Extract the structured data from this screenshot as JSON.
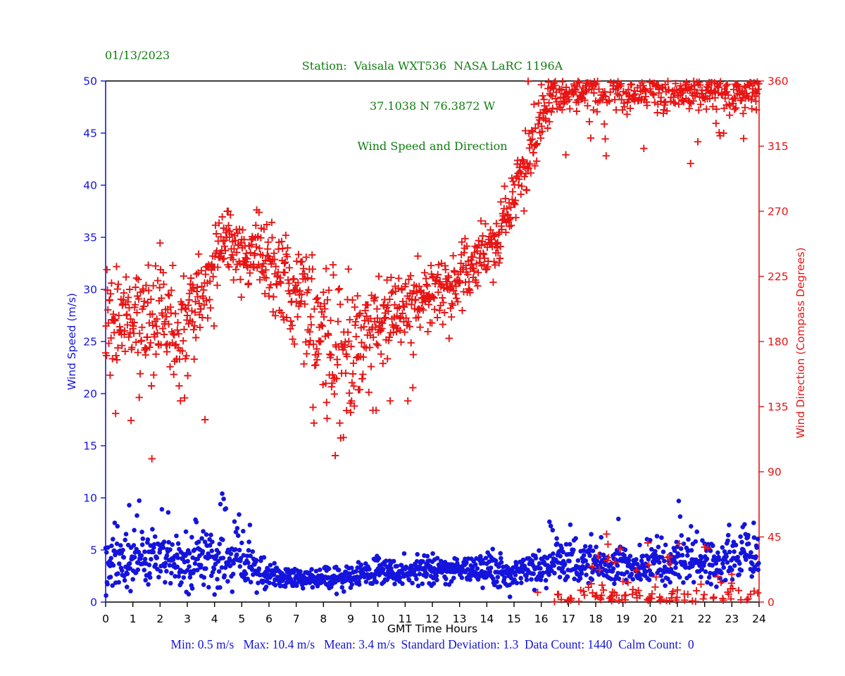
{
  "chart_data": {
    "type": "scatter",
    "date_label": "01/13/2023",
    "title_lines": [
      "Station:  Vaisala WXT536  NASA LaRC 1196A",
      "37.1038 N 76.3872 W",
      "Wind Speed and Direction"
    ],
    "title_color": "#0f7e0f",
    "xlabel": "GMT Time Hours",
    "xlabel_color": "#000000",
    "xlim": [
      0,
      24
    ],
    "x_ticks": [
      0,
      1,
      2,
      3,
      4,
      5,
      6,
      7,
      8,
      9,
      10,
      11,
      12,
      13,
      14,
      15,
      16,
      17,
      18,
      19,
      20,
      21,
      22,
      23,
      24
    ],
    "grid": false,
    "legend": "none",
    "left_axis": {
      "label": "Wind Speed (m/s)",
      "color": "#1515dd",
      "lim": [
        0,
        50
      ],
      "ticks": [
        0,
        5,
        10,
        15,
        20,
        25,
        30,
        35,
        40,
        45,
        50
      ]
    },
    "right_axis": {
      "label": "Wind Direction (Compass Degrees)",
      "color": "#e81414",
      "lim": [
        0,
        360
      ],
      "ticks": [
        0,
        45,
        90,
        135,
        180,
        225,
        270,
        315,
        360
      ]
    },
    "seed": 1196,
    "series": [
      {
        "name": "Wind Speed",
        "marker": "dot",
        "color": "#1414dd",
        "axis": "left",
        "n": 1440,
        "units": "m/s",
        "profile": {
          "hours": [
            0,
            0.5,
            1,
            1.5,
            2,
            2.5,
            3,
            3.5,
            4,
            4.5,
            5,
            5.5,
            6,
            6.5,
            7,
            7.5,
            8,
            8.5,
            9,
            9.5,
            10,
            11,
            12,
            13,
            14,
            15,
            16,
            16.5,
            17,
            18,
            19,
            20,
            21,
            22,
            23,
            24
          ],
          "mean": [
            3.6,
            3.8,
            4.0,
            4.1,
            4.2,
            3.9,
            3.7,
            3.9,
            4.3,
            4.2,
            3.8,
            3.3,
            2.6,
            2.3,
            2.2,
            2.2,
            2.3,
            2.4,
            2.5,
            2.7,
            2.8,
            2.9,
            3.0,
            2.9,
            3.1,
            2.9,
            3.4,
            3.9,
            3.7,
            3.6,
            3.4,
            3.6,
            3.9,
            3.8,
            4.0,
            4.3
          ],
          "spread": [
            1.3,
            1.3,
            1.3,
            1.3,
            1.3,
            1.25,
            1.2,
            1.25,
            1.3,
            1.3,
            1.2,
            1.0,
            0.6,
            0.55,
            0.5,
            0.5,
            0.55,
            0.55,
            0.6,
            0.6,
            0.65,
            0.65,
            0.7,
            0.65,
            0.7,
            0.7,
            0.85,
            0.95,
            0.95,
            0.9,
            0.85,
            0.9,
            0.95,
            0.9,
            0.95,
            1.0
          ]
        },
        "tails": [
          [
            0,
            5.5,
            0.05,
            "up"
          ],
          [
            5.5,
            16,
            0.02,
            "down"
          ],
          [
            16,
            24,
            0.035,
            "up"
          ]
        ],
        "tail_mag": [
          1.0,
          3.4
        ],
        "down_scale": 0.45,
        "spikes": [
          [
            0.33,
            7.6
          ],
          [
            0.87,
            9.3
          ],
          [
            1.15,
            8.3
          ],
          [
            2.07,
            8.9
          ],
          [
            2.3,
            8.6
          ],
          [
            3.3,
            7.9
          ],
          [
            4.22,
            9.4
          ],
          [
            4.28,
            10.4
          ],
          [
            4.33,
            9.9
          ],
          [
            4.38,
            8.9
          ],
          [
            4.9,
            8.4
          ],
          [
            5.3,
            7.4
          ],
          [
            16.3,
            7.7
          ],
          [
            16.35,
            7.3
          ],
          [
            16.42,
            6.9
          ],
          [
            21.05,
            9.7
          ],
          [
            21.1,
            8.2
          ],
          [
            22.9,
            7.4
          ],
          [
            23.4,
            7.2
          ],
          [
            23.8,
            7.6
          ]
        ],
        "clamp": [
          0.5,
          10.4
        ]
      },
      {
        "name": "Wind Direction",
        "marker": "plus",
        "color": "#e81414",
        "axis": "right",
        "n": 1440,
        "units": "degrees",
        "profile": {
          "hours": [
            0,
            1,
            2,
            2.5,
            3,
            3.5,
            4,
            4.4,
            4.8,
            5.2,
            5.6,
            6,
            6.5,
            7,
            7.5,
            8,
            8.5,
            9,
            9.5,
            10,
            10.5,
            11,
            11.5,
            12,
            12.5,
            13,
            13.5,
            14,
            14.5,
            15,
            15.5,
            16,
            16.5,
            17,
            18,
            19,
            20,
            21,
            22,
            23,
            24
          ],
          "mean": [
            195,
            198,
            196,
            190,
            196,
            205,
            240,
            252,
            247,
            240,
            240,
            235,
            225,
            214,
            200,
            183,
            176,
            172,
            182,
            192,
            198,
            203,
            208,
            214,
            216,
            222,
            232,
            244,
            258,
            280,
            305,
            335,
            350,
            354,
            356,
            354,
            356,
            352,
            355,
            352,
            354
          ],
          "spread": [
            18,
            18,
            17,
            17,
            16,
            15,
            11,
            10,
            10,
            11,
            13,
            15,
            15,
            15,
            18,
            22,
            22,
            22,
            20,
            16,
            13,
            12,
            11,
            10,
            10,
            10,
            10,
            10,
            11,
            12,
            11,
            9,
            8,
            7,
            7,
            7,
            7,
            8,
            7,
            8,
            7
          ]
        },
        "tails": [
          [
            0,
            3.5,
            0.05,
            "down"
          ],
          [
            3.5,
            7,
            0.03,
            "down"
          ],
          [
            7,
            10,
            0.07,
            "down"
          ],
          [
            10,
            15.5,
            0.02,
            "down"
          ],
          [
            15.5,
            16.5,
            0.06,
            "both"
          ],
          [
            16.5,
            19,
            0.12,
            "both"
          ],
          [
            19,
            21,
            0.09,
            "both"
          ],
          [
            21,
            22.5,
            0.11,
            "both"
          ],
          [
            22.5,
            24,
            0.08,
            "both"
          ]
        ],
        "tail_mag": [
          15,
          48
        ],
        "down_scale": 1.0,
        "outliers": [
          [
            1.7,
            99
          ],
          [
            2.0,
            248
          ],
          [
            2.75,
            139
          ],
          [
            2.9,
            141
          ],
          [
            3.65,
            126
          ],
          [
            9.0,
            131
          ],
          [
            10.45,
            139
          ],
          [
            11.1,
            139
          ],
          [
            16.9,
            309
          ],
          [
            18.4,
            47
          ],
          [
            18.45,
            40
          ],
          [
            22.0,
            38
          ]
        ],
        "wrap": 360
      }
    ],
    "stats_line": "Min: 0.5 m/s   Max: 10.4 m/s   Mean: 3.4 m/s  Standard Deviation: 1.3  Data Count: 1440  Calm Count:  0",
    "stats_color": "#1515dd",
    "stats": {
      "min_ms": 0.5,
      "max_ms": 10.4,
      "mean_ms": 3.4,
      "std_dev": 1.3,
      "data_count": 1440,
      "calm_count": 0
    }
  }
}
